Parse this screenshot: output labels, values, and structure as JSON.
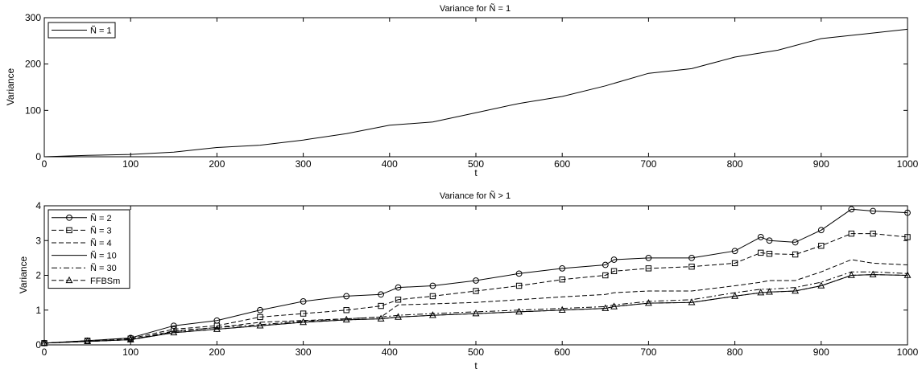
{
  "chart_data": [
    {
      "type": "line",
      "title": "Variance for Ñ = 1",
      "xlabel": "t",
      "ylabel": "Variance",
      "xlim": [
        0,
        1000
      ],
      "ylim": [
        0,
        300
      ],
      "xticks": [
        0,
        100,
        200,
        300,
        400,
        500,
        600,
        700,
        800,
        900,
        1000
      ],
      "yticks": [
        0,
        100,
        200,
        300
      ],
      "grid": false,
      "legend_position": "top-left",
      "series": [
        {
          "name": "Ñ = 1",
          "style": "solid",
          "x": [
            0,
            50,
            100,
            150,
            200,
            250,
            300,
            350,
            400,
            450,
            500,
            550,
            600,
            650,
            700,
            750,
            800,
            850,
            900,
            950,
            1000
          ],
          "values": [
            0,
            3,
            5,
            10,
            20,
            25,
            36,
            50,
            68,
            75,
            95,
            115,
            130,
            153,
            180,
            190,
            215,
            230,
            255,
            265,
            275
          ]
        }
      ]
    },
    {
      "type": "line",
      "title": "Variance for Ñ > 1",
      "xlabel": "t",
      "ylabel": "Variance",
      "xlim": [
        0,
        1000
      ],
      "ylim": [
        0,
        4
      ],
      "xticks": [
        0,
        100,
        200,
        300,
        400,
        500,
        600,
        700,
        800,
        900,
        1000
      ],
      "yticks": [
        0,
        1,
        2,
        3,
        4
      ],
      "grid": false,
      "legend_position": "top-left",
      "x": [
        0,
        50,
        100,
        150,
        200,
        250,
        300,
        350,
        390,
        410,
        450,
        500,
        550,
        600,
        650,
        660,
        700,
        750,
        800,
        830,
        840,
        870,
        900,
        935,
        960,
        1000
      ],
      "series": [
        {
          "name": "Ñ = 2",
          "style": "solid",
          "marker": "circle",
          "values": [
            0.05,
            0.12,
            0.2,
            0.55,
            0.7,
            1.0,
            1.25,
            1.4,
            1.45,
            1.65,
            1.7,
            1.85,
            2.05,
            2.2,
            2.3,
            2.45,
            2.5,
            2.5,
            2.7,
            3.1,
            3.0,
            2.95,
            3.3,
            3.9,
            3.85,
            3.8
          ]
        },
        {
          "name": "Ñ = 3",
          "style": "dashed",
          "marker": "square",
          "values": [
            0.05,
            0.12,
            0.18,
            0.45,
            0.55,
            0.8,
            0.9,
            1.0,
            1.12,
            1.3,
            1.4,
            1.55,
            1.7,
            1.88,
            2.0,
            2.12,
            2.2,
            2.25,
            2.35,
            2.65,
            2.62,
            2.6,
            2.85,
            3.2,
            3.2,
            3.1
          ]
        },
        {
          "name": "Ñ = 4",
          "style": "dashed",
          "marker": "none",
          "values": [
            0.05,
            0.1,
            0.15,
            0.4,
            0.5,
            0.65,
            0.7,
            0.75,
            0.8,
            1.15,
            1.18,
            1.22,
            1.3,
            1.38,
            1.45,
            1.5,
            1.55,
            1.55,
            1.7,
            1.8,
            1.85,
            1.85,
            2.1,
            2.45,
            2.35,
            2.3
          ]
        },
        {
          "name": "Ñ = 10",
          "style": "solid",
          "marker": "none",
          "values": [
            0.05,
            0.1,
            0.15,
            0.35,
            0.45,
            0.55,
            0.65,
            0.72,
            0.75,
            0.8,
            0.85,
            0.9,
            0.95,
            1.0,
            1.05,
            1.1,
            1.2,
            1.22,
            1.4,
            1.5,
            1.52,
            1.55,
            1.7,
            2.0,
            2.02,
            2.0
          ]
        },
        {
          "name": "Ñ = 30",
          "style": "dashdot",
          "marker": "none",
          "values": [
            0.05,
            0.1,
            0.15,
            0.38,
            0.5,
            0.58,
            0.68,
            0.75,
            0.8,
            0.85,
            0.9,
            0.95,
            1.0,
            1.05,
            1.1,
            1.15,
            1.25,
            1.3,
            1.5,
            1.6,
            1.6,
            1.65,
            1.8,
            2.1,
            2.1,
            2.05
          ]
        },
        {
          "name": "FFBSm",
          "style": "dashed",
          "marker": "triangle",
          "values": [
            0.05,
            0.1,
            0.15,
            0.35,
            0.45,
            0.55,
            0.65,
            0.72,
            0.75,
            0.8,
            0.85,
            0.9,
            0.95,
            1.0,
            1.05,
            1.1,
            1.2,
            1.22,
            1.4,
            1.5,
            1.52,
            1.55,
            1.7,
            2.0,
            2.02,
            2.0
          ]
        }
      ]
    }
  ]
}
